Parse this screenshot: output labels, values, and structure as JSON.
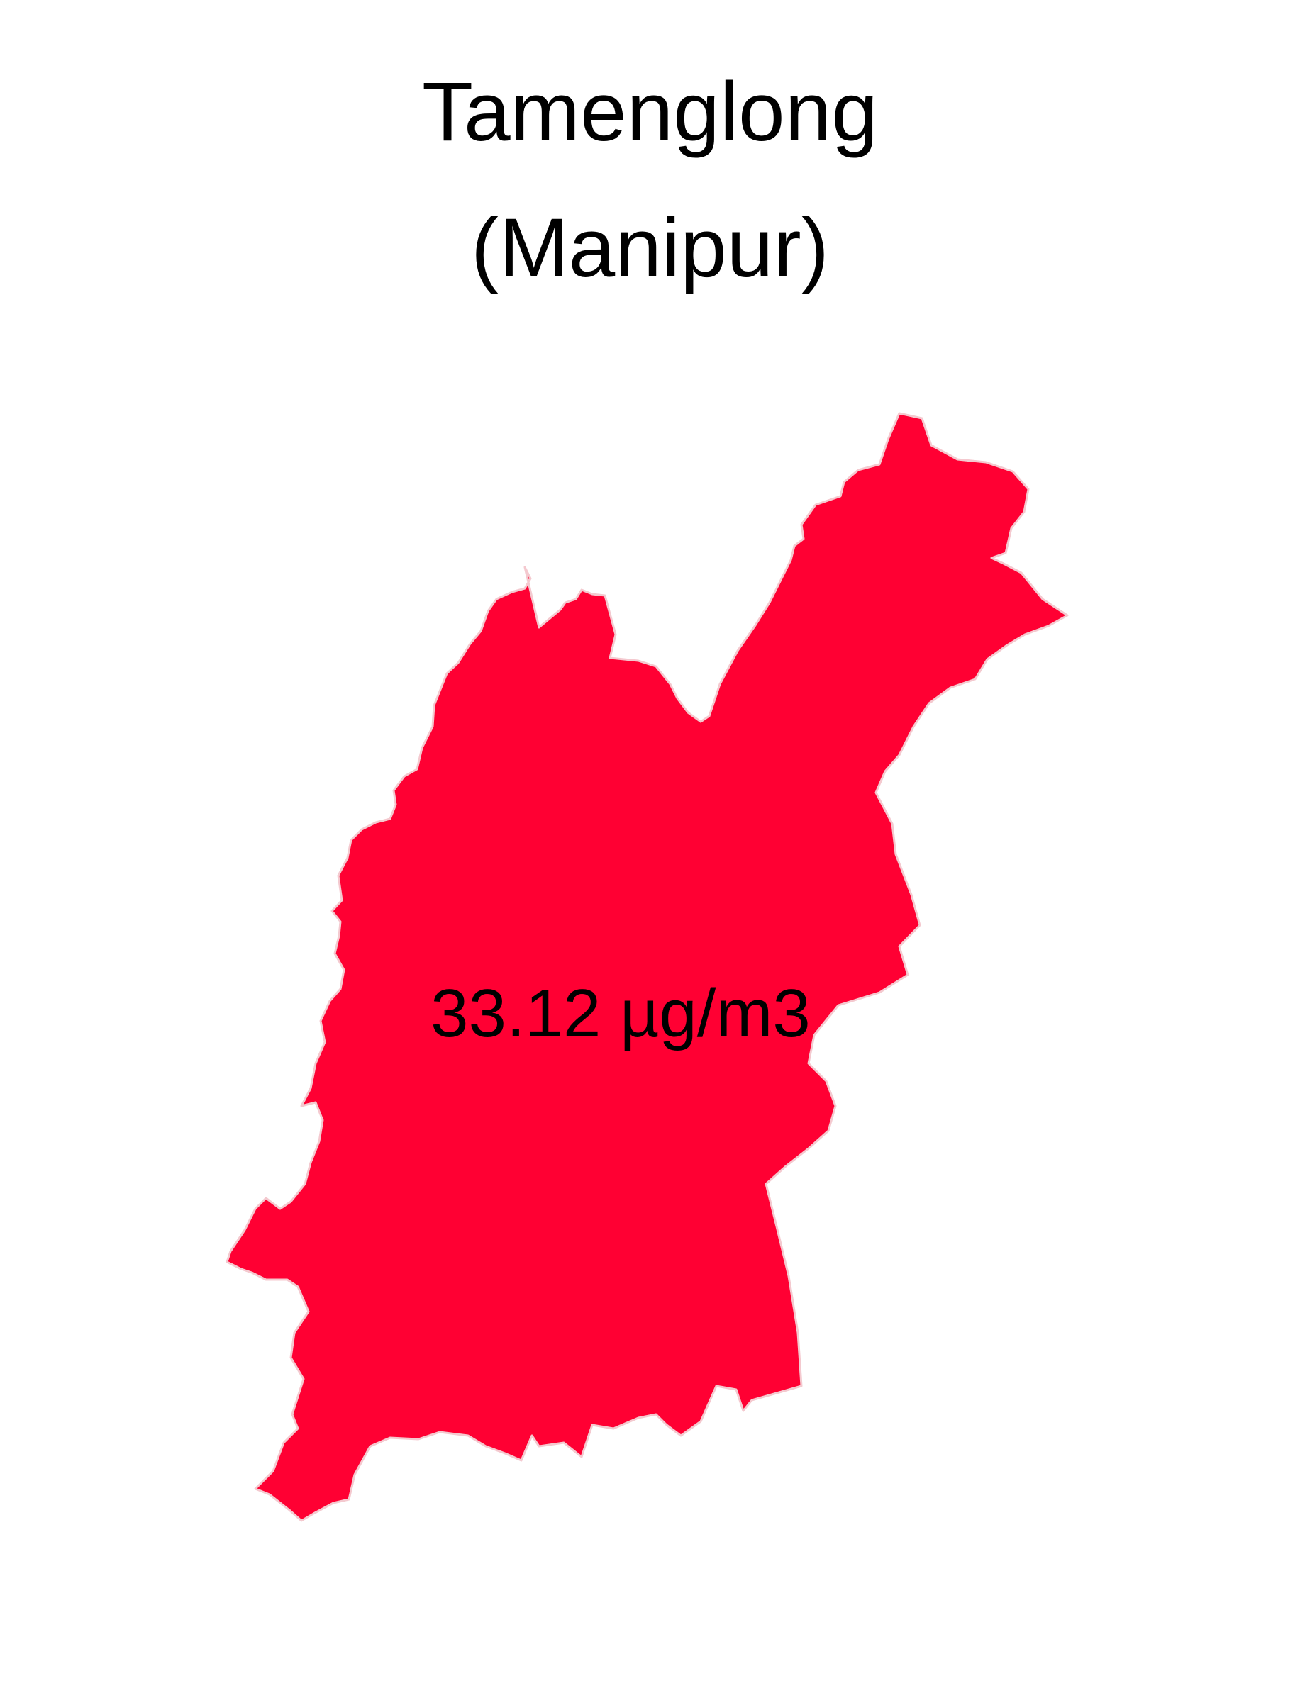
{
  "title": {
    "district": "Tamenglong",
    "state": "(Manipur)"
  },
  "map": {
    "region_name": "Tamenglong",
    "fill_color": "#ff0033",
    "border_color": "#f4c9cf",
    "background_color": "#ffffff",
    "value": 33.12,
    "value_label": "33.12 µg/m3"
  }
}
